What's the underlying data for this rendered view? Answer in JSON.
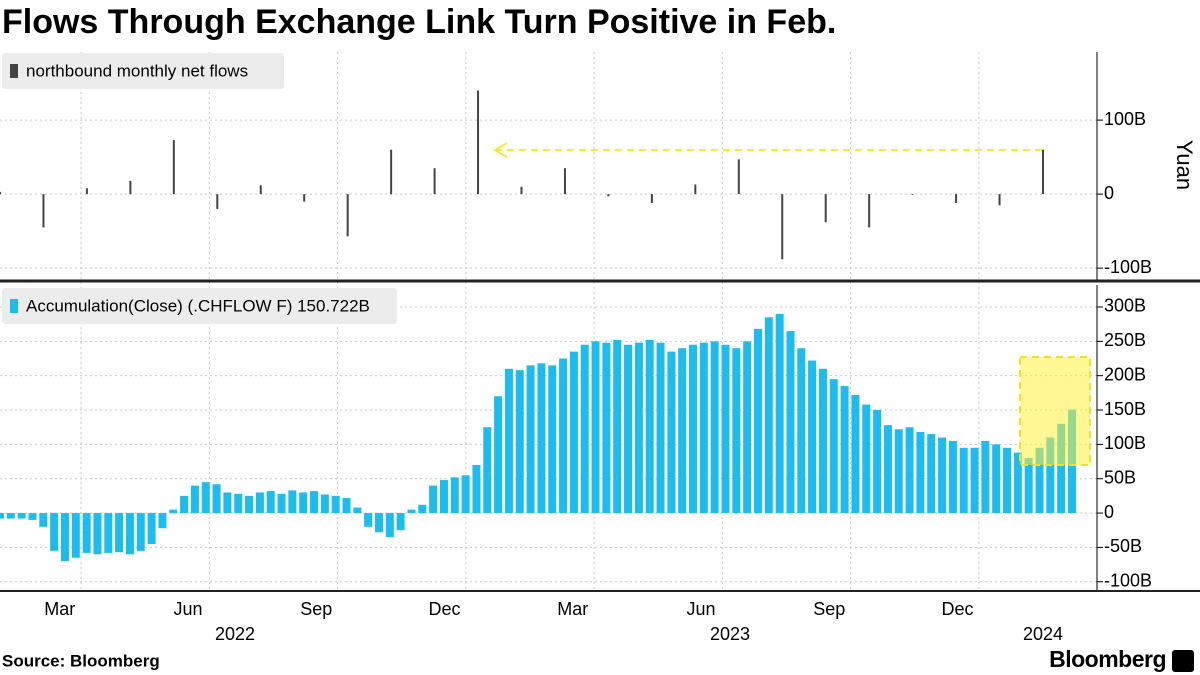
{
  "chart_data": [
    {
      "type": "bar",
      "title": "Flows Through Exchange Link Turn Positive in Feb.",
      "ylabel": "Yuan",
      "series": [
        {
          "name": "northbound monthly net flows",
          "color": "#444444",
          "values": [
            3,
            -45,
            8,
            18,
            73,
            -20,
            12,
            -10,
            -57,
            60,
            35,
            140,
            10,
            35,
            -3,
            -12,
            13,
            47,
            -88,
            -38,
            -45,
            -1,
            -12,
            -15,
            60
          ]
        }
      ],
      "ylim": [
        -116,
        192
      ],
      "yticks": [
        {
          "value": -100,
          "label": "-100B"
        },
        0,
        {
          "value": 100,
          "label": "100B"
        }
      ],
      "grid": true
    },
    {
      "type": "bar",
      "series": [
        {
          "name": "Accumulation(Close) (.CHFLOW F) 150.722B",
          "color": "#1cbcee",
          "values": [
            -8,
            -8,
            -8,
            -10,
            -20,
            -55,
            -70,
            -65,
            -58,
            -60,
            -58,
            -57,
            -60,
            -55,
            -45,
            -22,
            5,
            25,
            40,
            45,
            42,
            30,
            28,
            25,
            30,
            32,
            28,
            33,
            30,
            32,
            27,
            25,
            22,
            8,
            -20,
            -28,
            -35,
            -25,
            5,
            12,
            40,
            48,
            52,
            55,
            70,
            125,
            170,
            210,
            208,
            215,
            218,
            215,
            225,
            235,
            245,
            250,
            248,
            252,
            245,
            248,
            252,
            248,
            235,
            240,
            245,
            248,
            250,
            245,
            240,
            250,
            268,
            285,
            290,
            265,
            240,
            222,
            210,
            195,
            185,
            172,
            158,
            150,
            128,
            122,
            125,
            118,
            115,
            110,
            105,
            95,
            95,
            105,
            100,
            95,
            88,
            80,
            95,
            110,
            130,
            150.722
          ]
        }
      ],
      "ylim": [
        -112,
        332
      ],
      "yticks": [
        {
          "value": -100,
          "label": "-100B"
        },
        {
          "value": -50,
          "label": "-50B"
        },
        0,
        {
          "value": 50,
          "label": "50B"
        },
        {
          "value": 100,
          "label": "100B"
        },
        {
          "value": 150,
          "label": "150B"
        },
        {
          "value": 200,
          "label": "200B"
        },
        {
          "value": 250,
          "label": "250B"
        },
        {
          "value": 300,
          "label": "300B"
        }
      ],
      "grid": true
    }
  ],
  "x_axis": {
    "categories": [
      null,
      "Mar",
      null,
      null,
      "Jun",
      null,
      null,
      "Sep",
      null,
      null,
      "Dec",
      null,
      null,
      "Mar",
      null,
      null,
      "Jun",
      null,
      null,
      "Sep",
      null,
      null,
      "Dec",
      null,
      null
    ],
    "years": [
      "2022",
      "2023",
      "2024"
    ]
  },
  "source": "Source: Bloomberg",
  "logo": "Bloomberg"
}
